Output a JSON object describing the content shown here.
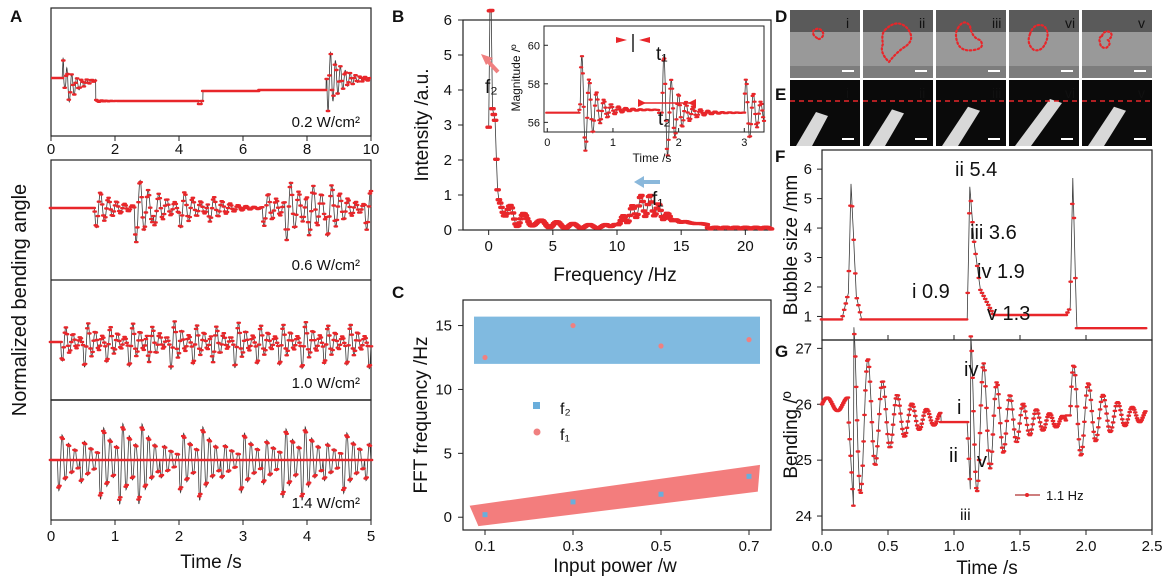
{
  "panels": {
    "A": {
      "letter": "A",
      "ylabel": "Normalized bending angle",
      "xlabel": "Time /s",
      "top_xticks": [
        "0",
        "2",
        "4",
        "6",
        "8",
        "10"
      ],
      "bottom_xticks": [
        "0",
        "1",
        "2",
        "3",
        "4",
        "5"
      ],
      "power_labels": [
        "0.2 W/cm²",
        "0.6 W/cm²",
        "1.0 W/cm²",
        "1.4 W/cm²"
      ]
    },
    "B": {
      "letter": "B",
      "ylabel": "Intensity /a.u.",
      "xlabel": "Frequency /Hz",
      "xticks": [
        "0",
        "5",
        "10",
        "15",
        "20"
      ],
      "yticks": [
        "0",
        "1",
        "2",
        "3",
        "4",
        "5",
        "6"
      ],
      "f1_label": "f₁",
      "f2_label": "f₂",
      "inset": {
        "ylabel": "Magnitude /º",
        "xlabel": "Time /s",
        "xticks": [
          "0",
          "1",
          "2",
          "3"
        ],
        "yticks": [
          "56",
          "58",
          "60"
        ],
        "t1_label": "t₁",
        "t2_label": "t₂"
      }
    },
    "C": {
      "letter": "C",
      "ylabel": "FFT frequency /Hz",
      "xlabel": "Input power /w",
      "xticks": [
        "0.1",
        "0.3",
        "0.5",
        "0.7"
      ],
      "yticks": [
        "0",
        "5",
        "10",
        "15"
      ],
      "legend_f2": "f₂",
      "legend_f1": "f₁"
    },
    "D": {
      "letter": "D",
      "roman": [
        "i",
        "ii",
        "iii",
        "vi",
        "v"
      ]
    },
    "E": {
      "letter": "E",
      "roman": [
        "i",
        "ii",
        "iii",
        "vi",
        "v"
      ]
    },
    "F": {
      "letter": "F",
      "ylabel": "Bubble size /mm",
      "yticks": [
        "1",
        "2",
        "3",
        "4",
        "5",
        "6"
      ],
      "annotations": [
        "ii 5.4",
        "iii 3.6",
        "iv 1.9",
        "i 0.9",
        "v 1.3"
      ]
    },
    "G": {
      "letter": "G",
      "ylabel": "Bending /º",
      "xlabel": "Time /s",
      "xticks": [
        "0.0",
        "0.5",
        "1.0",
        "1.5",
        "2.0",
        "2.5"
      ],
      "yticks": [
        "24",
        "25",
        "26",
        "27"
      ],
      "annotations": [
        "iv",
        "i",
        "ii",
        "v",
        "iii"
      ],
      "legend": "1.1 Hz"
    }
  },
  "colors": {
    "red": "#e8262a",
    "blue": "#6aaedb",
    "pink": "#f08080",
    "dark": "#222222"
  },
  "chart_data": [
    {
      "type": "scatter",
      "panel": "C",
      "xlabel": "Input power /w",
      "ylabel": "FFT frequency /Hz",
      "xlim": [
        0.05,
        0.75
      ],
      "ylim": [
        -1,
        17
      ],
      "series": [
        {
          "name": "f₂",
          "x": [
            0.1,
            0.3,
            0.5,
            0.7
          ],
          "y": [
            0.2,
            1.2,
            1.8,
            3.2
          ]
        },
        {
          "name": "f₁",
          "x": [
            0.1,
            0.3,
            0.5,
            0.7
          ],
          "y": [
            12.5,
            15.0,
            13.4,
            13.9
          ]
        }
      ]
    },
    {
      "type": "line",
      "panel": "F",
      "ylabel": "Bubble size /mm",
      "xlim": [
        0,
        2.5
      ],
      "ylim": [
        0.4,
        6.5
      ],
      "x": [
        0,
        0.15,
        0.2,
        0.22,
        0.26,
        0.3,
        1.1,
        1.12,
        1.15,
        1.2,
        1.3,
        1.85,
        1.88,
        1.9,
        1.93,
        2.45
      ],
      "y": [
        0.9,
        0.9,
        1.8,
        5.5,
        1.7,
        0.9,
        0.9,
        5.4,
        3.6,
        1.9,
        1.05,
        1.05,
        1.3,
        5.7,
        0.6,
        0.6
      ]
    }
  ]
}
